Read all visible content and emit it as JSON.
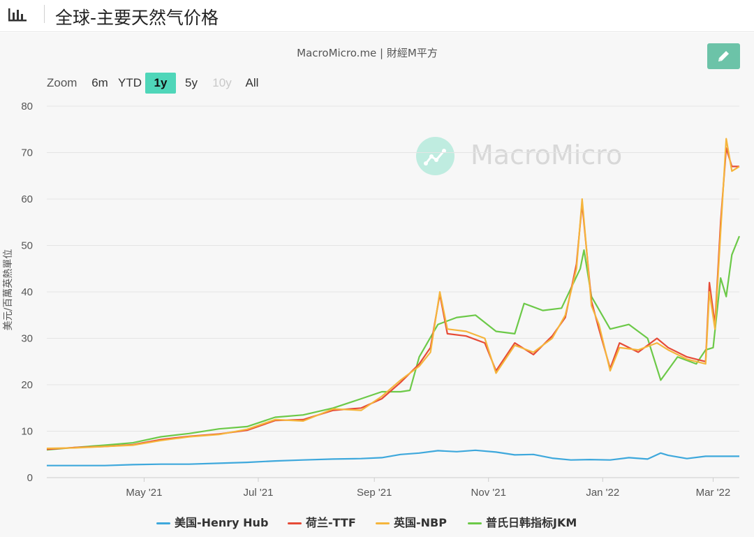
{
  "header": {
    "title": "全球-主要天然气价格",
    "icon": "bar-chart-icon"
  },
  "credit": "MacroMicro.me | 財經M平方",
  "watermark": "MacroMicro",
  "toolbar": {
    "zoom_label": "Zoom",
    "zoom_options": [
      "6m",
      "YTD",
      "1y",
      "5y",
      "10y",
      "All"
    ],
    "active": "1y",
    "disabled": [
      "10y"
    ],
    "edit_icon": "pencil-icon"
  },
  "colors": {
    "henry_hub": "#3ea8dc",
    "ttf": "#e64b37",
    "nbp": "#f5b53c",
    "jkm": "#6cc948",
    "edit_button": "#6cc3a8",
    "active_zoom": "#4fd6b9"
  },
  "chart_data": {
    "type": "line",
    "title": "",
    "xlabel": "",
    "ylabel": "美元/百萬英熱單位",
    "ylim": [
      0,
      80
    ],
    "yticks": [
      0,
      10,
      20,
      30,
      40,
      50,
      60,
      70,
      80
    ],
    "xlim": [
      "2021-03-10",
      "2022-03-15"
    ],
    "xtick_labels": [
      "May '21",
      "Jul '21",
      "Sep '21",
      "Nov '21",
      "Jan '22",
      "Mar '22"
    ],
    "xtick_dates": [
      "2021-05-01",
      "2021-07-01",
      "2021-09-01",
      "2021-11-01",
      "2022-01-01",
      "2022-03-01"
    ],
    "grid": "horizontal",
    "legend_position": "bottom",
    "series": [
      {
        "name": "美国-Henry Hub",
        "points": [
          [
            "2021-03-10",
            2.6
          ],
          [
            "2021-03-25",
            2.6
          ],
          [
            "2021-04-10",
            2.6
          ],
          [
            "2021-04-25",
            2.8
          ],
          [
            "2021-05-10",
            2.9
          ],
          [
            "2021-05-25",
            2.9
          ],
          [
            "2021-06-10",
            3.1
          ],
          [
            "2021-06-25",
            3.3
          ],
          [
            "2021-07-10",
            3.6
          ],
          [
            "2021-07-25",
            3.8
          ],
          [
            "2021-08-10",
            4.0
          ],
          [
            "2021-08-25",
            4.1
          ],
          [
            "2021-09-05",
            4.3
          ],
          [
            "2021-09-15",
            5.0
          ],
          [
            "2021-09-25",
            5.3
          ],
          [
            "2021-10-05",
            5.8
          ],
          [
            "2021-10-15",
            5.6
          ],
          [
            "2021-10-25",
            5.9
          ],
          [
            "2021-11-05",
            5.5
          ],
          [
            "2021-11-15",
            4.9
          ],
          [
            "2021-11-25",
            5.0
          ],
          [
            "2021-12-05",
            4.2
          ],
          [
            "2021-12-15",
            3.8
          ],
          [
            "2021-12-25",
            3.9
          ],
          [
            "2022-01-05",
            3.8
          ],
          [
            "2022-01-15",
            4.3
          ],
          [
            "2022-01-25",
            4.0
          ],
          [
            "2022-02-01",
            5.3
          ],
          [
            "2022-02-05",
            4.8
          ],
          [
            "2022-02-15",
            4.1
          ],
          [
            "2022-02-25",
            4.6
          ],
          [
            "2022-03-05",
            4.6
          ],
          [
            "2022-03-15",
            4.6
          ]
        ]
      },
      {
        "name": "荷兰-TTF",
        "points": [
          [
            "2021-03-10",
            6.1
          ],
          [
            "2021-03-25",
            6.5
          ],
          [
            "2021-04-10",
            6.7
          ],
          [
            "2021-04-25",
            7.1
          ],
          [
            "2021-05-10",
            8.2
          ],
          [
            "2021-05-25",
            8.9
          ],
          [
            "2021-06-10",
            9.4
          ],
          [
            "2021-06-25",
            10.2
          ],
          [
            "2021-07-10",
            12.3
          ],
          [
            "2021-07-25",
            12.5
          ],
          [
            "2021-08-10",
            14.5
          ],
          [
            "2021-08-25",
            15.0
          ],
          [
            "2021-09-05",
            17.0
          ],
          [
            "2021-09-15",
            20.5
          ],
          [
            "2021-09-25",
            24.5
          ],
          [
            "2021-10-01",
            28.0
          ],
          [
            "2021-10-06",
            39.5
          ],
          [
            "2021-10-10",
            31.0
          ],
          [
            "2021-10-20",
            30.5
          ],
          [
            "2021-10-30",
            29.0
          ],
          [
            "2021-11-05",
            23.0
          ],
          [
            "2021-11-15",
            29.0
          ],
          [
            "2021-11-25",
            26.5
          ],
          [
            "2021-12-05",
            30.5
          ],
          [
            "2021-12-12",
            34.5
          ],
          [
            "2021-12-18",
            46.0
          ],
          [
            "2021-12-21",
            59.0
          ],
          [
            "2021-12-26",
            38.0
          ],
          [
            "2021-12-30",
            32.0
          ],
          [
            "2022-01-05",
            23.5
          ],
          [
            "2022-01-10",
            29.0
          ],
          [
            "2022-01-20",
            27.0
          ],
          [
            "2022-01-30",
            30.0
          ],
          [
            "2022-02-05",
            28.0
          ],
          [
            "2022-02-15",
            26.0
          ],
          [
            "2022-02-25",
            25.0
          ],
          [
            "2022-02-27",
            42.0
          ],
          [
            "2022-03-02",
            33.0
          ],
          [
            "2022-03-05",
            55.0
          ],
          [
            "2022-03-08",
            71.0
          ],
          [
            "2022-03-11",
            67.0
          ],
          [
            "2022-03-15",
            67.0
          ]
        ]
      },
      {
        "name": "英国-NBP",
        "points": [
          [
            "2021-03-10",
            6.3
          ],
          [
            "2021-03-25",
            6.4
          ],
          [
            "2021-04-10",
            6.7
          ],
          [
            "2021-04-25",
            7.0
          ],
          [
            "2021-05-10",
            8.0
          ],
          [
            "2021-05-25",
            8.8
          ],
          [
            "2021-06-10",
            9.3
          ],
          [
            "2021-06-25",
            10.4
          ],
          [
            "2021-07-10",
            12.5
          ],
          [
            "2021-07-25",
            12.2
          ],
          [
            "2021-08-10",
            14.8
          ],
          [
            "2021-08-25",
            14.5
          ],
          [
            "2021-09-05",
            17.5
          ],
          [
            "2021-09-15",
            21.0
          ],
          [
            "2021-09-25",
            24.0
          ],
          [
            "2021-10-01",
            27.0
          ],
          [
            "2021-10-06",
            40.0
          ],
          [
            "2021-10-10",
            32.0
          ],
          [
            "2021-10-20",
            31.5
          ],
          [
            "2021-10-30",
            30.0
          ],
          [
            "2021-11-05",
            22.5
          ],
          [
            "2021-11-15",
            28.5
          ],
          [
            "2021-11-25",
            27.0
          ],
          [
            "2021-12-05",
            30.0
          ],
          [
            "2021-12-12",
            35.0
          ],
          [
            "2021-12-18",
            45.0
          ],
          [
            "2021-12-21",
            60.0
          ],
          [
            "2021-12-26",
            37.0
          ],
          [
            "2021-12-30",
            33.0
          ],
          [
            "2022-01-05",
            23.0
          ],
          [
            "2022-01-10",
            28.0
          ],
          [
            "2022-01-20",
            27.5
          ],
          [
            "2022-01-30",
            29.0
          ],
          [
            "2022-02-05",
            27.5
          ],
          [
            "2022-02-15",
            25.5
          ],
          [
            "2022-02-25",
            24.5
          ],
          [
            "2022-02-27",
            40.0
          ],
          [
            "2022-03-02",
            32.0
          ],
          [
            "2022-03-05",
            53.0
          ],
          [
            "2022-03-08",
            73.0
          ],
          [
            "2022-03-11",
            66.0
          ],
          [
            "2022-03-15",
            67.0
          ]
        ]
      },
      {
        "name": "普氏日韩指标JKM",
        "points": [
          [
            "2021-03-10",
            6.0
          ],
          [
            "2021-03-25",
            6.5
          ],
          [
            "2021-04-10",
            7.0
          ],
          [
            "2021-04-25",
            7.5
          ],
          [
            "2021-05-10",
            8.8
          ],
          [
            "2021-05-25",
            9.5
          ],
          [
            "2021-06-10",
            10.5
          ],
          [
            "2021-06-25",
            11.0
          ],
          [
            "2021-07-10",
            13.0
          ],
          [
            "2021-07-25",
            13.5
          ],
          [
            "2021-08-10",
            15.0
          ],
          [
            "2021-08-25",
            17.0
          ],
          [
            "2021-09-05",
            18.5
          ],
          [
            "2021-09-15",
            18.5
          ],
          [
            "2021-09-20",
            18.8
          ],
          [
            "2021-09-25",
            26.0
          ],
          [
            "2021-10-05",
            33.0
          ],
          [
            "2021-10-15",
            34.5
          ],
          [
            "2021-10-25",
            35.0
          ],
          [
            "2021-11-05",
            31.5
          ],
          [
            "2021-11-15",
            31.0
          ],
          [
            "2021-11-20",
            37.5
          ],
          [
            "2021-11-30",
            36.0
          ],
          [
            "2021-12-10",
            36.5
          ],
          [
            "2021-12-20",
            45.0
          ],
          [
            "2021-12-22",
            49.0
          ],
          [
            "2021-12-26",
            39.0
          ],
          [
            "2022-01-05",
            32.0
          ],
          [
            "2022-01-15",
            33.0
          ],
          [
            "2022-01-25",
            30.0
          ],
          [
            "2022-02-01",
            21.0
          ],
          [
            "2022-02-10",
            26.0
          ],
          [
            "2022-02-20",
            24.5
          ],
          [
            "2022-02-25",
            27.5
          ],
          [
            "2022-03-01",
            28.0
          ],
          [
            "2022-03-05",
            43.0
          ],
          [
            "2022-03-08",
            39.0
          ],
          [
            "2022-03-11",
            48.0
          ],
          [
            "2022-03-15",
            52.0
          ]
        ]
      }
    ]
  }
}
